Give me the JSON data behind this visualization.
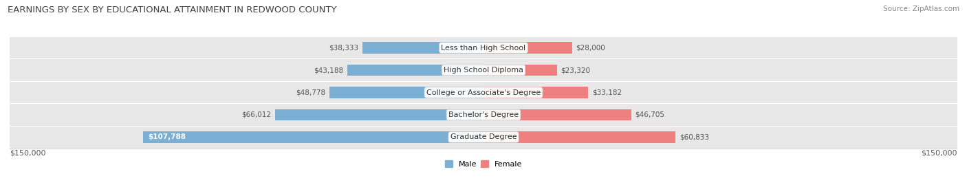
{
  "title": "EARNINGS BY SEX BY EDUCATIONAL ATTAINMENT IN REDWOOD COUNTY",
  "source": "Source: ZipAtlas.com",
  "categories": [
    "Less than High School",
    "High School Diploma",
    "College or Associate's Degree",
    "Bachelor's Degree",
    "Graduate Degree"
  ],
  "male_values": [
    38333,
    43188,
    48778,
    66012,
    107788
  ],
  "female_values": [
    28000,
    23320,
    33182,
    46705,
    60833
  ],
  "male_color": "#7bafd4",
  "female_color": "#f08080",
  "male_label": "Male",
  "female_label": "Female",
  "max_val": 150000,
  "axis_label_left": "$150,000",
  "axis_label_right": "$150,000",
  "background_color": "#ffffff",
  "row_bg_color": "#e8e8e8",
  "title_fontsize": 9.5,
  "source_fontsize": 7.5,
  "label_fontsize": 8.0,
  "value_fontsize": 7.5,
  "category_fontsize": 8.0
}
